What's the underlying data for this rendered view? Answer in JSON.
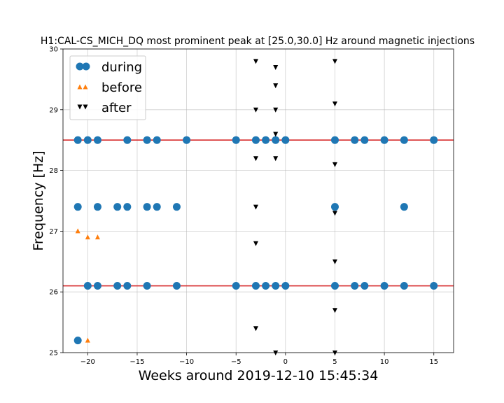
{
  "chart_data": {
    "type": "scatter",
    "title": "H1:CAL-CS_MICH_DQ most prominent peak at [25.0,30.0] Hz around magnetic injections",
    "xlabel": "Weeks around 2019-12-10 15:45:34",
    "ylabel": "Frequency [Hz]",
    "xlim": [
      -22.5,
      17
    ],
    "ylim": [
      25,
      30
    ],
    "xticks": [
      -20,
      -15,
      -10,
      -5,
      0,
      5,
      10,
      15
    ],
    "xtick_labels": [
      "−20",
      "−15",
      "−10",
      "−5",
      "0",
      "5",
      "10",
      "15"
    ],
    "yticks": [
      25,
      26,
      27,
      28,
      29,
      30
    ],
    "ytick_labels": [
      "25",
      "26",
      "27",
      "28",
      "29",
      "30"
    ],
    "grid": true,
    "legend_position": "top-left",
    "hlines": [
      {
        "y": 28.5,
        "color": "#d62728"
      },
      {
        "y": 26.1,
        "color": "#d62728"
      }
    ],
    "series": [
      {
        "name": "during",
        "marker": "circle",
        "color": "#1f77b4",
        "points": [
          [
            -21,
            28.5
          ],
          [
            -20,
            28.5
          ],
          [
            -19,
            28.5
          ],
          [
            -16,
            28.5
          ],
          [
            -14,
            28.5
          ],
          [
            -13,
            28.5
          ],
          [
            -10,
            28.5
          ],
          [
            -5,
            28.5
          ],
          [
            -3,
            28.5
          ],
          [
            -2,
            28.5
          ],
          [
            -1,
            28.5
          ],
          [
            0,
            28.5
          ],
          [
            5,
            28.5
          ],
          [
            7,
            28.5
          ],
          [
            8,
            28.5
          ],
          [
            10,
            28.5
          ],
          [
            12,
            28.5
          ],
          [
            15,
            28.5
          ],
          [
            -21,
            27.4
          ],
          [
            -19,
            27.4
          ],
          [
            -17,
            27.4
          ],
          [
            -16,
            27.4
          ],
          [
            -14,
            27.4
          ],
          [
            -13,
            27.4
          ],
          [
            -11,
            27.4
          ],
          [
            5,
            27.4
          ],
          [
            12,
            27.4
          ],
          [
            -20,
            26.1
          ],
          [
            -19,
            26.1
          ],
          [
            -17,
            26.1
          ],
          [
            -16,
            26.1
          ],
          [
            -14,
            26.1
          ],
          [
            -11,
            26.1
          ],
          [
            -5,
            26.1
          ],
          [
            -3,
            26.1
          ],
          [
            -2,
            26.1
          ],
          [
            -1,
            26.1
          ],
          [
            0,
            26.1
          ],
          [
            5,
            26.1
          ],
          [
            7,
            26.1
          ],
          [
            8,
            26.1
          ],
          [
            10,
            26.1
          ],
          [
            12,
            26.1
          ],
          [
            15,
            26.1
          ],
          [
            -21,
            25.2
          ]
        ]
      },
      {
        "name": "before",
        "marker": "triangle-up",
        "color": "#ff7f0e",
        "points": [
          [
            -21,
            27.0
          ],
          [
            -20,
            26.9
          ],
          [
            -19,
            26.9
          ],
          [
            -20,
            25.2
          ]
        ]
      },
      {
        "name": "after",
        "marker": "triangle-down",
        "color": "#000000",
        "points": [
          [
            -3,
            29.8
          ],
          [
            -3,
            29.0
          ],
          [
            -3,
            28.2
          ],
          [
            -3,
            27.4
          ],
          [
            -3,
            26.8
          ],
          [
            -3,
            25.4
          ],
          [
            -1,
            29.7
          ],
          [
            -1,
            29.4
          ],
          [
            -1,
            29.0
          ],
          [
            -1,
            28.6
          ],
          [
            -1,
            28.2
          ],
          [
            -1,
            25.0
          ],
          [
            5,
            29.8
          ],
          [
            5,
            29.1
          ],
          [
            5,
            28.1
          ],
          [
            5,
            27.3
          ],
          [
            5,
            26.5
          ],
          [
            5,
            25.7
          ],
          [
            5,
            25.0
          ]
        ]
      }
    ]
  }
}
